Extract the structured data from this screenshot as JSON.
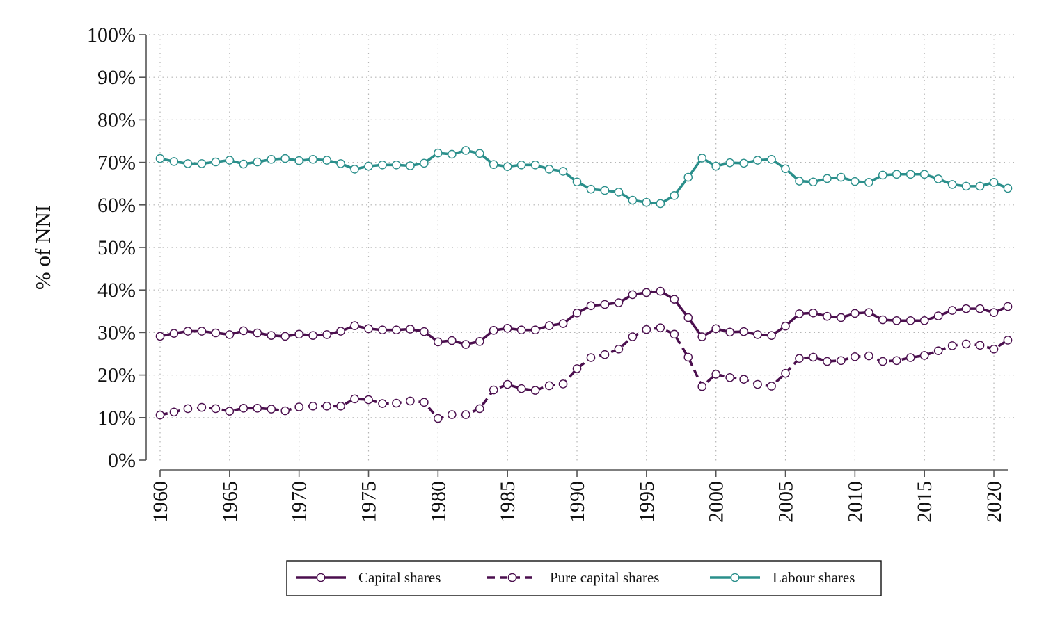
{
  "chart_data": {
    "type": "line",
    "title": "",
    "xlabel": "",
    "ylabel": "% of NNI",
    "xlim": [
      1960,
      2021
    ],
    "ylim": [
      0,
      100
    ],
    "x_ticks": [
      1960,
      1965,
      1970,
      1975,
      1980,
      1985,
      1990,
      1995,
      2000,
      2005,
      2010,
      2015,
      2020
    ],
    "y_ticks": [
      {
        "value": 0,
        "label": "0%"
      },
      {
        "value": 10,
        "label": "10%"
      },
      {
        "value": 20,
        "label": "20%"
      },
      {
        "value": 30,
        "label": "30%"
      },
      {
        "value": 40,
        "label": "40%"
      },
      {
        "value": 50,
        "label": "50%"
      },
      {
        "value": 60,
        "label": "60%"
      },
      {
        "value": 70,
        "label": "70%"
      },
      {
        "value": 80,
        "label": "80%"
      },
      {
        "value": 90,
        "label": "90%"
      },
      {
        "value": 100,
        "label": "100%"
      }
    ],
    "grid": true,
    "grid_style": "dotted",
    "legend_position": "bottom",
    "x": [
      1960,
      1961,
      1962,
      1963,
      1964,
      1965,
      1966,
      1967,
      1968,
      1969,
      1970,
      1971,
      1972,
      1973,
      1974,
      1975,
      1976,
      1977,
      1978,
      1979,
      1980,
      1981,
      1982,
      1983,
      1984,
      1985,
      1986,
      1987,
      1988,
      1989,
      1990,
      1991,
      1992,
      1993,
      1994,
      1995,
      1996,
      1997,
      1998,
      1999,
      2000,
      2001,
      2002,
      2003,
      2004,
      2005,
      2006,
      2007,
      2008,
      2009,
      2010,
      2011,
      2012,
      2013,
      2014,
      2015,
      2016,
      2017,
      2018,
      2019,
      2020,
      2021
    ],
    "series": [
      {
        "name": "Capital shares",
        "color": "#4b0f4e",
        "dash": "solid",
        "values": [
          29.1,
          29.8,
          30.3,
          30.3,
          29.9,
          29.5,
          30.4,
          29.9,
          29.3,
          29.1,
          29.6,
          29.3,
          29.5,
          30.3,
          31.6,
          30.9,
          30.6,
          30.6,
          30.8,
          30.2,
          27.8,
          28.1,
          27.2,
          27.9,
          30.5,
          31.0,
          30.6,
          30.6,
          31.6,
          32.1,
          34.6,
          36.3,
          36.6,
          37.0,
          38.9,
          39.4,
          39.7,
          37.8,
          33.5,
          29.0,
          30.9,
          30.1,
          30.2,
          29.5,
          29.3,
          31.5,
          34.4,
          34.6,
          33.8,
          33.5,
          34.5,
          34.7,
          33.0,
          32.8,
          32.8,
          32.8,
          33.9,
          35.2,
          35.6,
          35.6,
          34.7,
          36.1
        ]
      },
      {
        "name": "Pure capital shares",
        "color": "#4b0f4e",
        "dash": "dashed",
        "values": [
          10.6,
          11.3,
          12.1,
          12.4,
          12.1,
          11.5,
          12.2,
          12.2,
          12.0,
          11.6,
          12.5,
          12.7,
          12.7,
          12.7,
          14.4,
          14.2,
          13.3,
          13.4,
          13.9,
          13.6,
          9.8,
          10.7,
          10.7,
          12.1,
          16.5,
          17.8,
          16.8,
          16.4,
          17.5,
          17.9,
          21.5,
          24.1,
          24.8,
          26.1,
          29.0,
          30.7,
          31.1,
          29.6,
          24.2,
          17.3,
          20.2,
          19.4,
          19.0,
          17.8,
          17.4,
          20.4,
          23.9,
          24.2,
          23.2,
          23.4,
          24.3,
          24.5,
          23.2,
          23.4,
          24.1,
          24.6,
          25.7,
          26.9,
          27.3,
          27.0,
          26.1,
          28.2
        ]
      },
      {
        "name": "Labour shares",
        "color": "#2a8f8b",
        "dash": "solid",
        "values": [
          70.9,
          70.2,
          69.7,
          69.7,
          70.1,
          70.5,
          69.6,
          70.1,
          70.7,
          70.9,
          70.4,
          70.7,
          70.5,
          69.7,
          68.4,
          69.1,
          69.4,
          69.4,
          69.2,
          69.8,
          72.2,
          71.9,
          72.8,
          72.1,
          69.5,
          69.0,
          69.4,
          69.4,
          68.4,
          67.9,
          65.4,
          63.7,
          63.4,
          63.0,
          61.1,
          60.6,
          60.3,
          62.2,
          66.5,
          71.0,
          69.1,
          69.9,
          69.8,
          70.5,
          70.7,
          68.5,
          65.6,
          65.4,
          66.2,
          66.5,
          65.5,
          65.3,
          67.0,
          67.2,
          67.2,
          67.2,
          66.1,
          64.8,
          64.4,
          64.4,
          65.3,
          63.9
        ]
      }
    ]
  }
}
